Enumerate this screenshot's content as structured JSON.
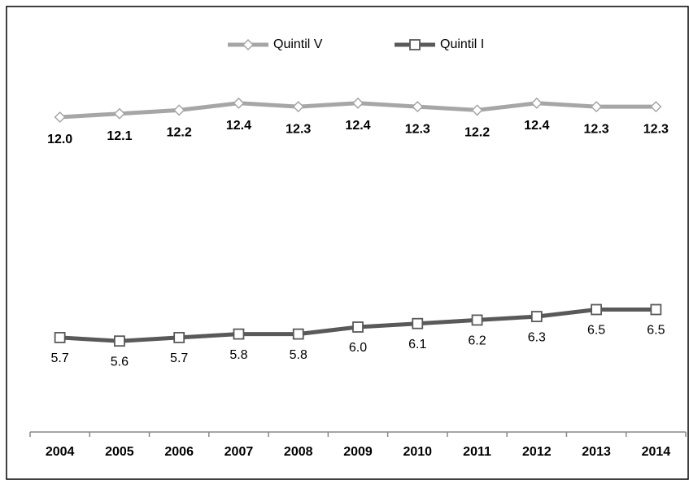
{
  "chart_data": {
    "type": "line",
    "categories": [
      "2004",
      "2005",
      "2006",
      "2007",
      "2008",
      "2009",
      "2010",
      "2011",
      "2012",
      "2013",
      "2014"
    ],
    "series": [
      {
        "name": "Quintil V",
        "color": "#a6a6a6",
        "marker": "diamond",
        "values": [
          12.0,
          12.1,
          12.2,
          12.4,
          12.3,
          12.4,
          12.3,
          12.2,
          12.4,
          12.3,
          12.3
        ],
        "value_labels": [
          "12.0",
          "12.1",
          "12.2",
          "12.4",
          "12.3",
          "12.4",
          "12.3",
          "12.2",
          "12.4",
          "12.3",
          "12.3"
        ]
      },
      {
        "name": "Quintil I",
        "color": "#595959",
        "marker": "square",
        "values": [
          5.7,
          5.6,
          5.7,
          5.8,
          5.8,
          6.0,
          6.1,
          6.2,
          6.3,
          6.5,
          6.5
        ],
        "value_labels": [
          "5.7",
          "5.6",
          "5.7",
          "5.8",
          "5.8",
          "6.0",
          "6.1",
          "6.2",
          "6.3",
          "6.5",
          "6.5"
        ]
      }
    ],
    "ylim": [
      3,
      15
    ],
    "legend": "top"
  }
}
